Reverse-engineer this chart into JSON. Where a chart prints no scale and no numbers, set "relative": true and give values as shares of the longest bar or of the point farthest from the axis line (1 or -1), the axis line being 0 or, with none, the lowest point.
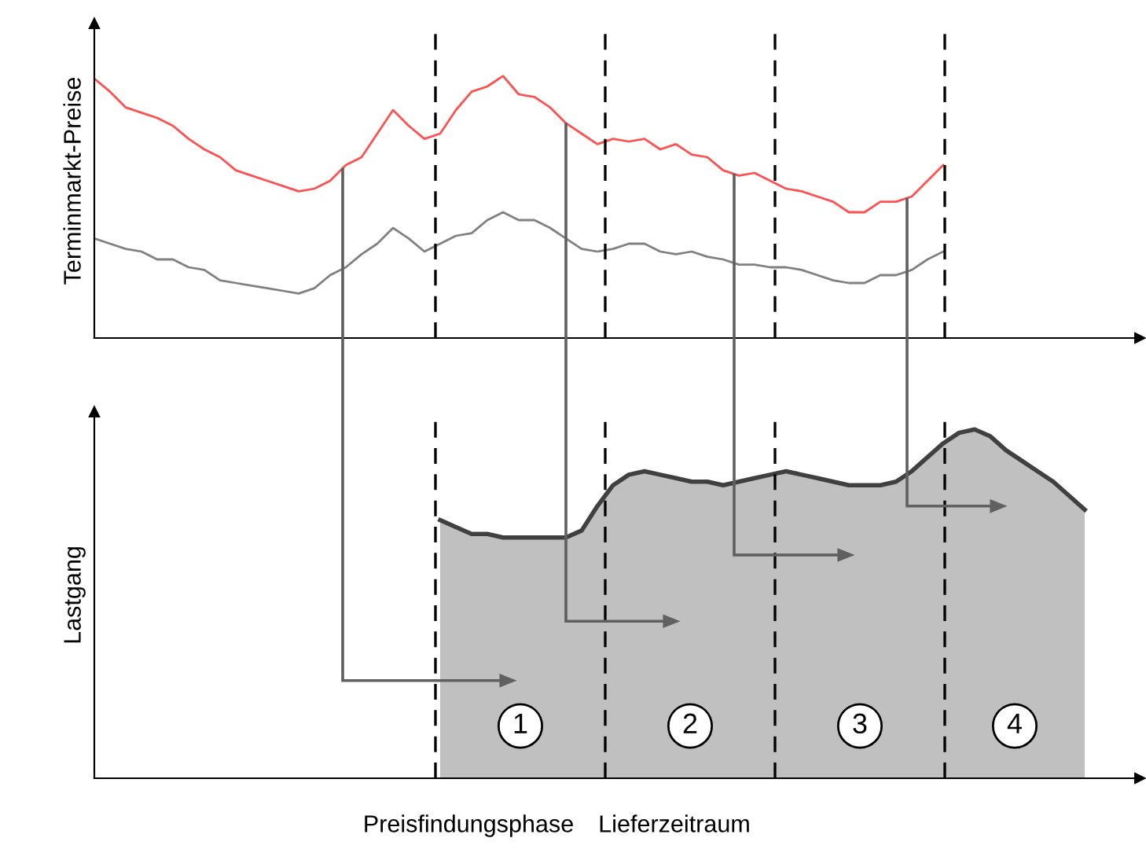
{
  "chart_data": [
    {
      "type": "line",
      "relative": true,
      "ylabel": "Terminmarkt-Preise",
      "categories": [
        null,
        null,
        null,
        null,
        null,
        null,
        null,
        null,
        null,
        null,
        null,
        null,
        null,
        null,
        null,
        null,
        null,
        null,
        null,
        null,
        null,
        null,
        null,
        null,
        null,
        null,
        null,
        null,
        null,
        null,
        null,
        null,
        null,
        null,
        null,
        null,
        null,
        null,
        null,
        null,
        null,
        null,
        null,
        null,
        null,
        null,
        null,
        null,
        null,
        null,
        null,
        null,
        null,
        null,
        null,
        null,
        null,
        null,
        null,
        null,
        null,
        null,
        null,
        null,
        null,
        null,
        null
      ],
      "series": [
        {
          "color": "#ff5050",
          "values": [
            0.99,
            0.94,
            0.88,
            0.86,
            0.84,
            0.81,
            0.76,
            0.72,
            0.69,
            0.64,
            0.62,
            0.6,
            0.58,
            0.56,
            0.57,
            0.6,
            0.66,
            0.69,
            0.78,
            0.87,
            0.81,
            0.76,
            0.78,
            0.87,
            0.94,
            0.96,
            1.0,
            0.93,
            0.92,
            0.88,
            0.82,
            0.78,
            0.74,
            0.76,
            0.75,
            0.76,
            0.72,
            0.74,
            0.7,
            0.69,
            0.64,
            0.62,
            0.63,
            0.6,
            0.57,
            0.56,
            0.54,
            0.52,
            0.48,
            0.48,
            0.52,
            0.52,
            0.54,
            0.6,
            0.66,
            null,
            null,
            null,
            null,
            null,
            null,
            null,
            null,
            null,
            null,
            null,
            null
          ]
        },
        {
          "color": "#808080",
          "values": [
            0.38,
            0.36,
            0.34,
            0.33,
            0.3,
            0.3,
            0.27,
            0.26,
            0.22,
            0.21,
            0.2,
            0.19,
            0.18,
            0.17,
            0.19,
            0.24,
            0.27,
            0.32,
            0.36,
            0.42,
            0.38,
            0.33,
            0.36,
            0.39,
            0.4,
            0.45,
            0.48,
            0.45,
            0.45,
            0.42,
            0.38,
            0.34,
            0.33,
            0.34,
            0.36,
            0.36,
            0.33,
            0.32,
            0.33,
            0.31,
            0.3,
            0.28,
            0.28,
            0.27,
            0.27,
            0.26,
            0.24,
            0.22,
            0.21,
            0.21,
            0.24,
            0.24,
            0.26,
            0.3,
            0.33,
            null,
            null,
            null,
            null,
            null,
            null,
            null,
            null,
            null,
            null,
            null,
            null
          ]
        }
      ]
    },
    {
      "type": "area",
      "relative": true,
      "ylabel": "Lastgang",
      "categories": [
        null,
        null,
        null,
        null,
        null,
        null,
        null,
        null,
        null,
        null,
        null,
        null,
        null,
        null,
        null,
        null,
        null,
        null,
        null,
        null,
        null,
        null,
        null,
        null,
        null,
        null,
        null,
        null,
        null,
        null,
        null,
        null,
        null,
        null,
        null,
        null,
        null,
        null,
        null,
        null,
        null,
        null,
        null,
        null,
        null,
        null,
        null,
        null,
        null,
        null,
        null,
        null,
        null,
        null,
        null,
        null,
        null,
        null,
        null,
        null,
        null,
        null,
        null,
        null,
        null,
        null,
        null
      ],
      "series": [
        {
          "color": "#c0c0c0",
          "values": [
            null,
            null,
            null,
            null,
            null,
            null,
            null,
            null,
            null,
            null,
            null,
            null,
            null,
            null,
            null,
            null,
            null,
            null,
            null,
            null,
            null,
            null,
            0.74,
            0.72,
            0.7,
            0.7,
            0.69,
            0.69,
            0.69,
            0.69,
            0.69,
            0.71,
            0.78,
            0.84,
            0.87,
            0.88,
            0.87,
            0.86,
            0.85,
            0.85,
            0.84,
            0.85,
            0.86,
            0.87,
            0.88,
            0.87,
            0.86,
            0.85,
            0.84,
            0.84,
            0.84,
            0.85,
            0.88,
            0.92,
            0.96,
            0.99,
            1.0,
            0.98,
            0.94,
            0.91,
            0.88,
            0.85,
            0.81,
            0.77,
            null,
            null,
            null
          ]
        }
      ],
      "annotations": [
        "1",
        "2",
        "3",
        "4",
        "Preisfindungsphase",
        "Lieferzeitraum"
      ]
    }
  ]
}
